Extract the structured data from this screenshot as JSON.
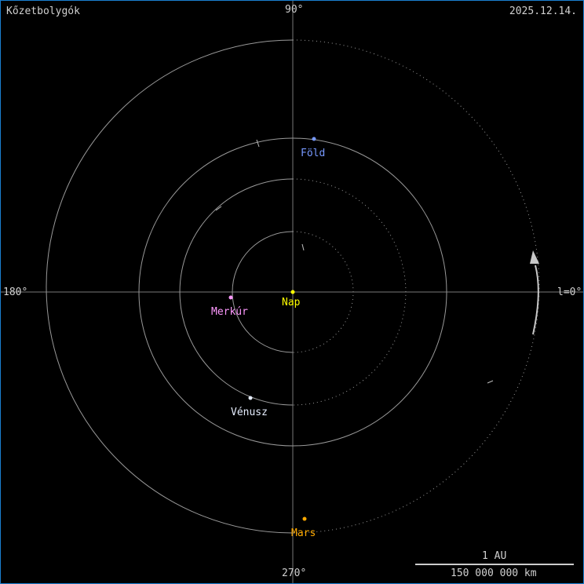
{
  "title": "Kőzetbolygók",
  "date": "2025.12.14.",
  "angles": {
    "top": "90°",
    "left": "180°",
    "bottom": "270°",
    "right": "l=0°"
  },
  "scale": {
    "top_label": "1 AU",
    "bottom_label": "150 000 000 km"
  },
  "bodies": [
    {
      "name": "Nap",
      "color": "#ffff00"
    },
    {
      "name": "Merkúr",
      "color": "#ff99ff"
    },
    {
      "name": "Vénusz",
      "color": "#e6eeff"
    },
    {
      "name": "Föld",
      "color": "#7799ff"
    },
    {
      "name": "Mars",
      "color": "#ffaa00"
    }
  ],
  "colors": {
    "border": "#1a7fd0",
    "orbit": "#909090",
    "text": "#d0d0d0"
  }
}
